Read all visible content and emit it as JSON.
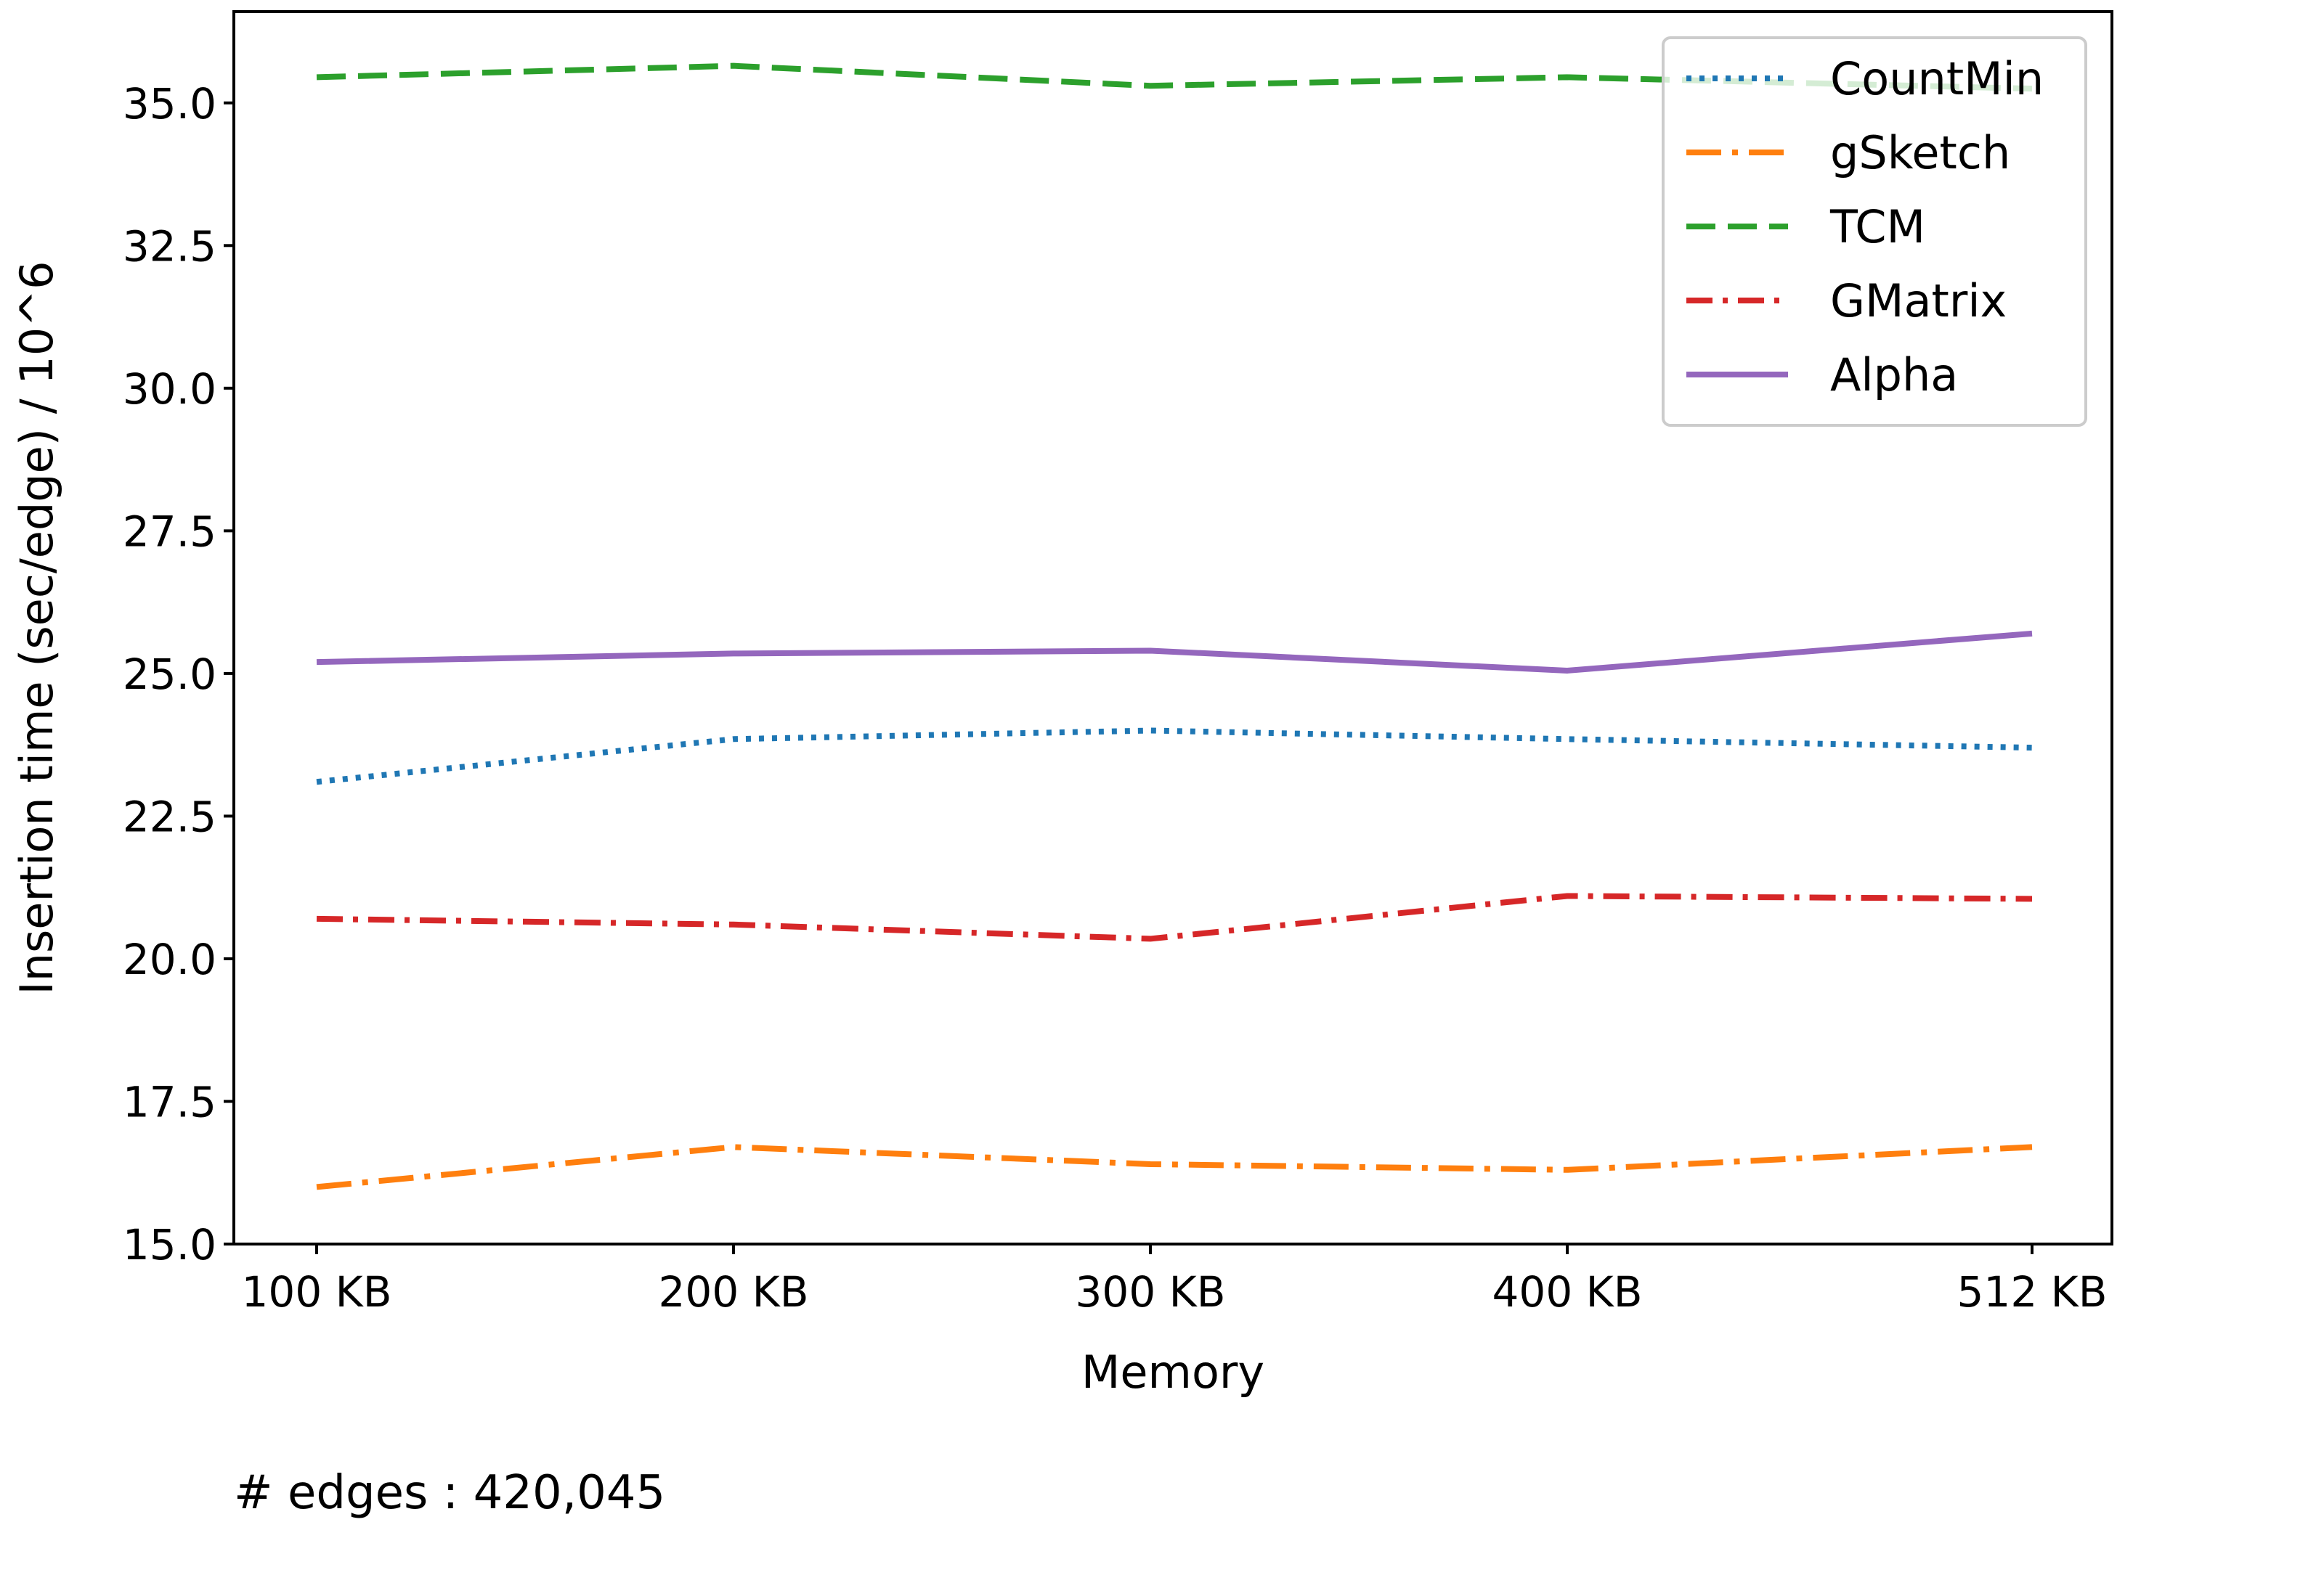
{
  "chart_data": {
    "type": "line",
    "title": "",
    "xlabel": "Memory",
    "ylabel": "Insertion time (sec/edge) / 10^6",
    "categories": [
      "100 KB",
      "200 KB",
      "300 KB",
      "400 KB",
      "512 KB"
    ],
    "ylim": [
      15.0,
      36.6
    ],
    "yticks": [
      "15.0",
      "17.5",
      "20.0",
      "22.5",
      "25.0",
      "27.5",
      "30.0",
      "32.5",
      "35.0"
    ],
    "grid": false,
    "legend_position": "top-right",
    "series": [
      {
        "name": "CountMin",
        "color": "#1f77b4",
        "style": "dotted",
        "values": [
          23.1,
          23.85,
          24.0,
          23.85,
          23.7
        ]
      },
      {
        "name": "gSketch",
        "color": "#ff7f0e",
        "style": "dashdot-long",
        "values": [
          16.0,
          16.7,
          16.4,
          16.3,
          16.7
        ]
      },
      {
        "name": "TCM",
        "color": "#2ca02c",
        "style": "dashed",
        "values": [
          35.45,
          35.65,
          35.3,
          35.45,
          35.25
        ]
      },
      {
        "name": "GMatrix",
        "color": "#d62728",
        "style": "dashdot",
        "values": [
          20.7,
          20.6,
          20.35,
          21.1,
          21.05
        ]
      },
      {
        "name": "Alpha",
        "color": "#9467bd",
        "style": "solid",
        "values": [
          25.2,
          25.35,
          25.4,
          25.05,
          25.7
        ]
      }
    ]
  },
  "footnote": "# edges : 420,045"
}
